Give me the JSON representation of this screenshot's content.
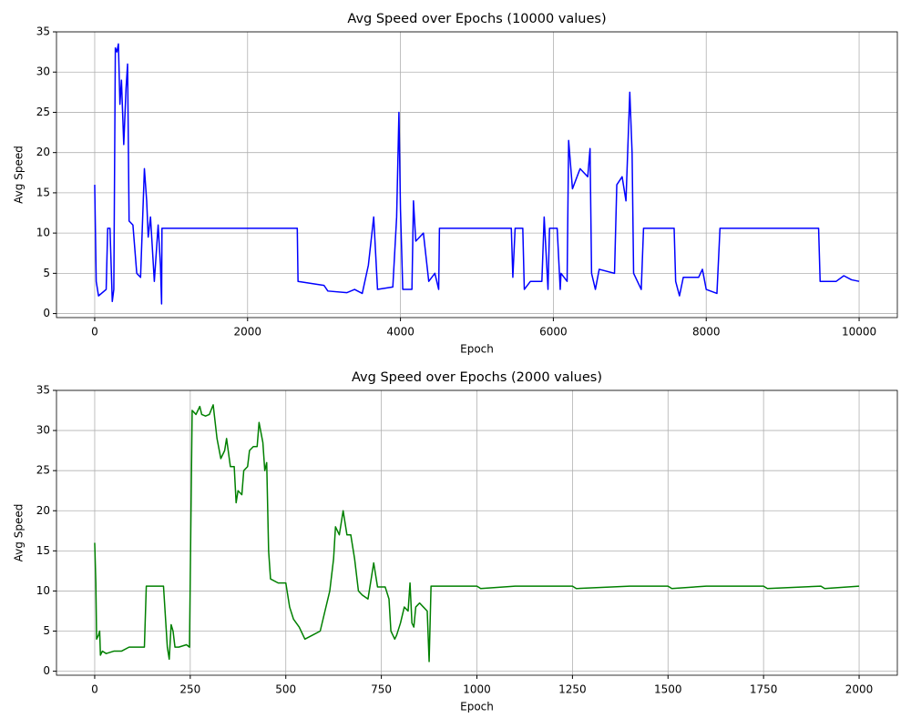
{
  "chart_data": [
    {
      "type": "line",
      "title": "Avg Speed over Epochs (10000 values)",
      "xlabel": "Epoch",
      "ylabel": "Avg Speed",
      "color": "#0000ff",
      "grid": true,
      "xlim": [
        -500,
        10500
      ],
      "ylim": [
        -0.5,
        35
      ],
      "xticks": [
        0,
        2000,
        4000,
        6000,
        8000,
        10000
      ],
      "yticks": [
        0,
        5,
        10,
        15,
        20,
        25,
        30,
        35
      ],
      "x": [
        0,
        20,
        50,
        150,
        170,
        200,
        230,
        250,
        270,
        290,
        310,
        330,
        350,
        380,
        410,
        430,
        450,
        500,
        550,
        600,
        650,
        680,
        700,
        730,
        780,
        830,
        860,
        875,
        880,
        1500,
        2000,
        2650,
        2660,
        3000,
        3050,
        3300,
        3400,
        3500,
        3580,
        3650,
        3700,
        3900,
        3950,
        3980,
        4000,
        4030,
        4150,
        4170,
        4200,
        4300,
        4370,
        4450,
        4500,
        4510,
        5000,
        5450,
        5470,
        5500,
        5600,
        5620,
        5700,
        5850,
        5880,
        5930,
        5950,
        6050,
        6090,
        6100,
        6180,
        6200,
        6250,
        6350,
        6450,
        6480,
        6500,
        6550,
        6600,
        6800,
        6830,
        6900,
        6950,
        7000,
        7030,
        7050,
        7150,
        7180,
        7500,
        7580,
        7600,
        7650,
        7700,
        7900,
        7950,
        8000,
        8140,
        8180,
        8500,
        9000,
        9470,
        9490,
        9700,
        9800,
        9900,
        10000
      ],
      "values": [
        16,
        4,
        2.2,
        3,
        10.6,
        10.6,
        1.5,
        3,
        33,
        32.5,
        33.5,
        26,
        29,
        21,
        28,
        31,
        11.5,
        11,
        5,
        4.5,
        18,
        14,
        9.5,
        12,
        4,
        11,
        6,
        1.2,
        10.6,
        10.6,
        10.6,
        10.6,
        4,
        3.5,
        2.8,
        2.6,
        3,
        2.5,
        6,
        12,
        3,
        3.3,
        12,
        25,
        13,
        3,
        3,
        14,
        9,
        10,
        4,
        5,
        3,
        10.6,
        10.6,
        10.6,
        4.5,
        10.6,
        10.6,
        3,
        4,
        4,
        12,
        3,
        10.6,
        10.6,
        3,
        5,
        4,
        21.5,
        15.5,
        18,
        17,
        20.5,
        5,
        3,
        5.5,
        5,
        16,
        17,
        14,
        27.5,
        20,
        5,
        3,
        10.6,
        10.6,
        10.6,
        4,
        2.2,
        4.5,
        4.5,
        5.5,
        3,
        2.5,
        10.6,
        10.6,
        10.6,
        10.6,
        4,
        4,
        4.7,
        4.2,
        4
      ]
    },
    {
      "type": "line",
      "title": "Avg Speed over Epochs (2000 values)",
      "xlabel": "Epoch",
      "ylabel": "Avg Speed",
      "color": "#008000",
      "grid": true,
      "xlim": [
        -100,
        2100
      ],
      "ylim": [
        -0.5,
        35
      ],
      "xticks": [
        0,
        250,
        500,
        750,
        1000,
        1250,
        1500,
        1750,
        2000
      ],
      "yticks": [
        0,
        5,
        10,
        15,
        20,
        25,
        30,
        35
      ],
      "x": [
        0,
        3,
        5,
        10,
        13,
        15,
        20,
        30,
        50,
        70,
        90,
        110,
        130,
        135,
        150,
        180,
        190,
        195,
        200,
        205,
        210,
        220,
        240,
        248,
        252,
        255,
        265,
        275,
        280,
        290,
        300,
        310,
        320,
        330,
        340,
        345,
        355,
        365,
        370,
        375,
        385,
        390,
        400,
        405,
        415,
        425,
        430,
        440,
        445,
        450,
        455,
        460,
        480,
        500,
        510,
        520,
        535,
        550,
        570,
        590,
        600,
        615,
        625,
        630,
        640,
        650,
        660,
        670,
        680,
        690,
        700,
        715,
        725,
        730,
        740,
        760,
        770,
        775,
        785,
        790,
        800,
        810,
        820,
        825,
        830,
        835,
        840,
        850,
        860,
        870,
        875,
        880,
        1000,
        1010,
        1100,
        1250,
        1260,
        1400,
        1500,
        1510,
        1600,
        1750,
        1760,
        1900,
        1910,
        2000
      ],
      "values": [
        16,
        11,
        4,
        4.5,
        5,
        2,
        2.5,
        2.2,
        2.5,
        2.5,
        3,
        3,
        3,
        10.6,
        10.6,
        10.6,
        3,
        1.5,
        5.8,
        5,
        3,
        3,
        3.3,
        3,
        20,
        32.5,
        32,
        33,
        32,
        31.8,
        32,
        33.2,
        29,
        26.5,
        27.5,
        29,
        25.5,
        25.5,
        21,
        22.5,
        22,
        25,
        25.5,
        27.5,
        28,
        28,
        31,
        28.5,
        25,
        26,
        15,
        11.5,
        11,
        11,
        8,
        6.5,
        5.5,
        4,
        4.5,
        5,
        7,
        10,
        14,
        18,
        17,
        20,
        17,
        17,
        14,
        10,
        9.5,
        9,
        12,
        13.5,
        10.5,
        10.5,
        9,
        5,
        4,
        4.5,
        6,
        8,
        7.5,
        11,
        6,
        5.5,
        8,
        8.5,
        8,
        7.5,
        1.2,
        10.6,
        10.6,
        10.3,
        10.6,
        10.6,
        10.3,
        10.6,
        10.6,
        10.3,
        10.6,
        10.6,
        10.3,
        10.6,
        10.3,
        10.6
      ]
    }
  ]
}
